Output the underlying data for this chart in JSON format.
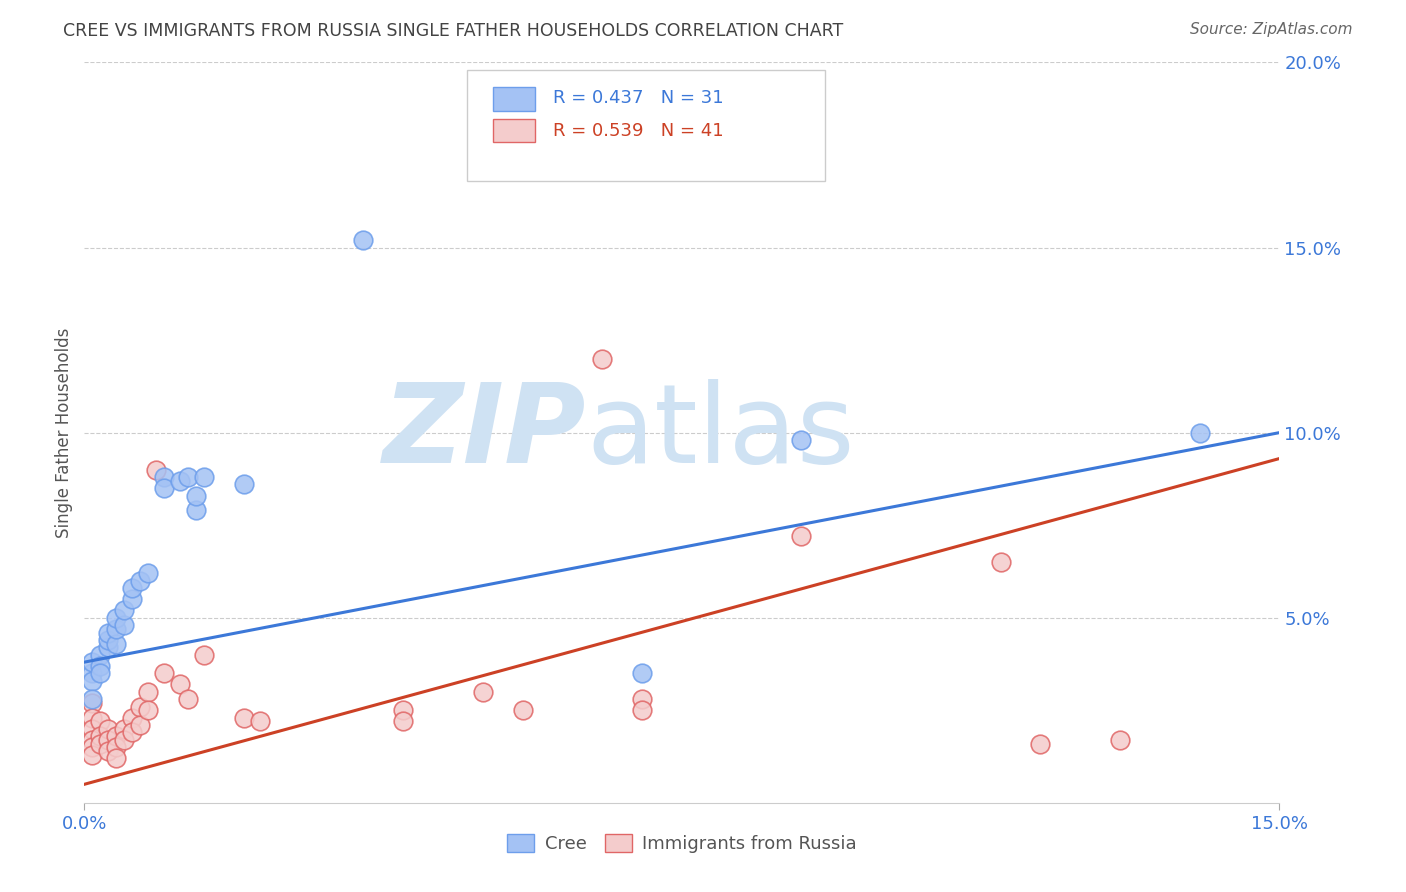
{
  "title": "CREE VS IMMIGRANTS FROM RUSSIA SINGLE FATHER HOUSEHOLDS CORRELATION CHART",
  "source": "Source: ZipAtlas.com",
  "ylabel_label": "Single Father Households",
  "x_min": 0.0,
  "x_max": 0.15,
  "y_min": 0.0,
  "y_max": 0.2,
  "x_ticks": [
    0.0,
    0.15
  ],
  "x_tick_labels": [
    "0.0%",
    "15.0%"
  ],
  "y_ticks": [
    0.05,
    0.1,
    0.15,
    0.2
  ],
  "y_tick_labels": [
    "5.0%",
    "10.0%",
    "15.0%",
    "20.0%"
  ],
  "cree_color": "#a4c2f4",
  "russia_color": "#f4cccc",
  "cree_edge_color": "#6d9eeb",
  "russia_edge_color": "#e06666",
  "cree_line_color": "#3c78d8",
  "russia_line_color": "#cc4125",
  "legend_R_cree": "0.437",
  "legend_N_cree": "31",
  "legend_R_russia": "0.539",
  "legend_N_russia": "41",
  "cree_points": [
    [
      0.001,
      0.035
    ],
    [
      0.001,
      0.038
    ],
    [
      0.001,
      0.033
    ],
    [
      0.002,
      0.04
    ],
    [
      0.002,
      0.037
    ],
    [
      0.002,
      0.035
    ],
    [
      0.003,
      0.042
    ],
    [
      0.003,
      0.044
    ],
    [
      0.003,
      0.046
    ],
    [
      0.004,
      0.043
    ],
    [
      0.004,
      0.047
    ],
    [
      0.004,
      0.05
    ],
    [
      0.005,
      0.048
    ],
    [
      0.005,
      0.052
    ],
    [
      0.006,
      0.055
    ],
    [
      0.006,
      0.058
    ],
    [
      0.007,
      0.06
    ],
    [
      0.008,
      0.062
    ],
    [
      0.01,
      0.088
    ],
    [
      0.01,
      0.085
    ],
    [
      0.012,
      0.087
    ],
    [
      0.013,
      0.088
    ],
    [
      0.014,
      0.079
    ],
    [
      0.014,
      0.083
    ],
    [
      0.015,
      0.088
    ],
    [
      0.02,
      0.086
    ],
    [
      0.035,
      0.152
    ],
    [
      0.07,
      0.035
    ],
    [
      0.09,
      0.098
    ],
    [
      0.14,
      0.1
    ],
    [
      0.001,
      0.028
    ]
  ],
  "russia_points": [
    [
      0.001,
      0.027
    ],
    [
      0.001,
      0.023
    ],
    [
      0.001,
      0.02
    ],
    [
      0.001,
      0.017
    ],
    [
      0.001,
      0.015
    ],
    [
      0.001,
      0.013
    ],
    [
      0.002,
      0.022
    ],
    [
      0.002,
      0.018
    ],
    [
      0.002,
      0.016
    ],
    [
      0.003,
      0.02
    ],
    [
      0.003,
      0.017
    ],
    [
      0.003,
      0.014
    ],
    [
      0.004,
      0.018
    ],
    [
      0.004,
      0.015
    ],
    [
      0.004,
      0.012
    ],
    [
      0.005,
      0.02
    ],
    [
      0.005,
      0.017
    ],
    [
      0.006,
      0.023
    ],
    [
      0.006,
      0.019
    ],
    [
      0.007,
      0.026
    ],
    [
      0.007,
      0.021
    ],
    [
      0.008,
      0.03
    ],
    [
      0.008,
      0.025
    ],
    [
      0.009,
      0.09
    ],
    [
      0.01,
      0.035
    ],
    [
      0.012,
      0.032
    ],
    [
      0.013,
      0.028
    ],
    [
      0.015,
      0.04
    ],
    [
      0.02,
      0.023
    ],
    [
      0.022,
      0.022
    ],
    [
      0.04,
      0.025
    ],
    [
      0.04,
      0.022
    ],
    [
      0.05,
      0.03
    ],
    [
      0.055,
      0.025
    ],
    [
      0.065,
      0.12
    ],
    [
      0.07,
      0.028
    ],
    [
      0.07,
      0.025
    ],
    [
      0.09,
      0.072
    ],
    [
      0.115,
      0.065
    ],
    [
      0.13,
      0.017
    ],
    [
      0.12,
      0.016
    ]
  ],
  "cree_line_x": [
    0.0,
    0.15
  ],
  "cree_line_y": [
    0.038,
    0.1
  ],
  "russia_line_x": [
    0.0,
    0.15
  ],
  "russia_line_y": [
    0.005,
    0.093
  ],
  "background_color": "#ffffff",
  "grid_color": "#cccccc",
  "tick_color": "#3c78d8",
  "title_color": "#434343",
  "source_color": "#666666",
  "watermark_zip": "ZIP",
  "watermark_atlas": "atlas",
  "watermark_color": "#cfe2f3"
}
